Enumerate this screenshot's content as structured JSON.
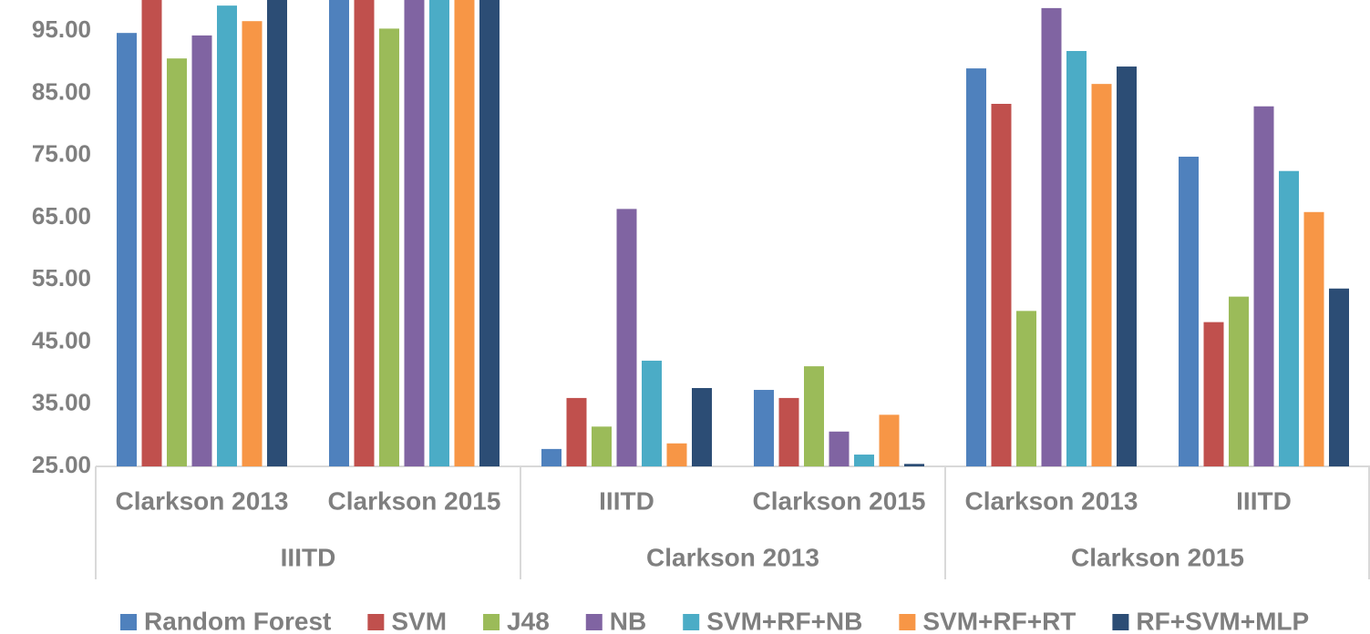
{
  "chart_data": {
    "type": "bar",
    "groups": [
      {
        "name": "IIITD",
        "categories": [
          "Clarkson 2013",
          "Clarkson 2015"
        ]
      },
      {
        "name": "Clarkson 2013",
        "categories": [
          "IIITD",
          "Clarkson 2015"
        ]
      },
      {
        "name": "Clarkson 2015",
        "categories": [
          "Clarkson 2013",
          "IIITD"
        ]
      }
    ],
    "series": [
      {
        "name": "Random Forest",
        "color": "#4f81bd",
        "values": [
          94.7,
          100,
          27.8,
          37.3,
          89.0,
          74.8
        ]
      },
      {
        "name": "SVM",
        "color": "#c0504d",
        "values": [
          100,
          100,
          36.0,
          36.0,
          83.3,
          48.2
        ]
      },
      {
        "name": "J48",
        "color": "#9bbb59",
        "values": [
          90.6,
          95.4,
          31.4,
          41.1,
          50.0,
          52.3
        ]
      },
      {
        "name": "NB",
        "color": "#8064a2",
        "values": [
          94.3,
          100,
          66.4,
          30.6,
          98.7,
          82.9
        ]
      },
      {
        "name": "SVM+RF+NB",
        "color": "#4bacc6",
        "values": [
          99.1,
          100,
          42.0,
          26.9,
          91.8,
          72.5
        ]
      },
      {
        "name": "SVM+RF+RT",
        "color": "#f79646",
        "values": [
          96.6,
          100,
          28.7,
          33.3,
          86.5,
          65.9
        ]
      },
      {
        "name": "RF+SVM+MLP",
        "color": "#2c4d75",
        "values": [
          100,
          100,
          37.6,
          25.4,
          89.3,
          53.6
        ]
      }
    ],
    "ylim": [
      25,
      100
    ],
    "yticks": [
      {
        "value": 25,
        "label": "25.00"
      },
      {
        "value": 35,
        "label": "35.00"
      },
      {
        "value": 45,
        "label": "45.00"
      },
      {
        "value": 55,
        "label": "55.00"
      },
      {
        "value": 65,
        "label": "65.00"
      },
      {
        "value": 75,
        "label": "75.00"
      },
      {
        "value": 85,
        "label": "85.00"
      },
      {
        "value": 95,
        "label": "95.00"
      }
    ],
    "grid": false,
    "legend": "bottom"
  }
}
